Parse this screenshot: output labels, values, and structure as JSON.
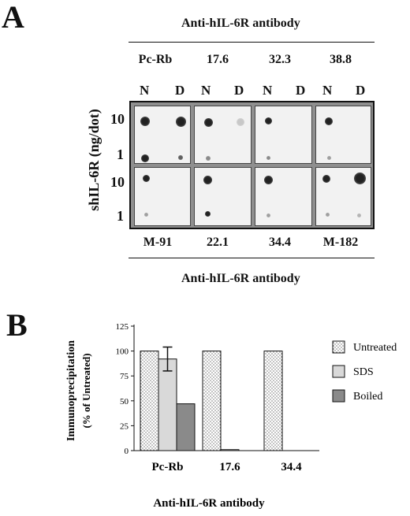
{
  "panel_a": {
    "letter": "A",
    "header_top": "Anti-hIL-6R  antibody",
    "header_bottom": "Anti-hIL-6R  antibody",
    "y_axis_title": "shIL-6R (ng/dot)",
    "row_labels": [
      "10",
      "1",
      "10",
      "1"
    ],
    "col_sub": [
      "N",
      "D"
    ],
    "top_antibodies": [
      "Pc-Rb",
      "17.6",
      "32.3",
      "38.8"
    ],
    "bottom_antibodies": [
      "M-91",
      "22.1",
      "34.4",
      "M-182"
    ]
  },
  "panel_b": {
    "letter": "B",
    "legend": [
      "Untreated",
      "SDS",
      "Boiled"
    ],
    "colors": {
      "untreated": "#ffffff",
      "sds": "#d9d9d9",
      "boiled": "#8a8a8a"
    }
  },
  "chart_data": {
    "type": "bar",
    "categories": [
      "Pc-Rb",
      "17.6",
      "34.4"
    ],
    "series": [
      {
        "name": "Untreated",
        "values": [
          100,
          100,
          100
        ]
      },
      {
        "name": "SDS",
        "values": [
          92,
          1,
          0
        ],
        "error": [
          12,
          0,
          0
        ]
      },
      {
        "name": "Boiled",
        "values": [
          47,
          0,
          0
        ]
      }
    ],
    "ylabel": "Immunoprecipitation",
    "ylabel_sub": "(% of Untreated)",
    "xlabel": "Anti-hIL-6R  antibody",
    "yticks": [
      "0",
      "25",
      "50",
      "75",
      "100",
      "125"
    ],
    "ylim": [
      0,
      125
    ],
    "legend_position": "right"
  }
}
